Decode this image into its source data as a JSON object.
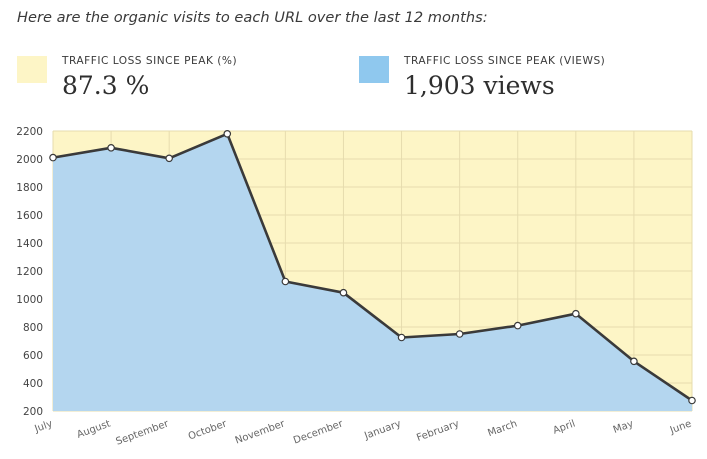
{
  "intro": "Here are the organic visits to each URL over the last 12 months:",
  "stats": [
    {
      "label": "TRAFFIC LOSS SINCE PEAK (%)",
      "value": "87.3 %",
      "color": "#fdf5c6"
    },
    {
      "label": "TRAFFIC LOSS SINCE PEAK (VIEWS)",
      "value": "1,903 views",
      "color": "#8fc8ee"
    }
  ],
  "chart_data": {
    "type": "area",
    "categories": [
      "July",
      "August",
      "September",
      "October",
      "November",
      "December",
      "January",
      "February",
      "March",
      "April",
      "May",
      "June"
    ],
    "series": [
      {
        "values": [
          2010,
          2080,
          2005,
          2180,
          1125,
          1045,
          725,
          750,
          810,
          895,
          555,
          275
        ]
      }
    ],
    "ylim": [
      200,
      2200
    ],
    "yticks": [
      200,
      400,
      600,
      800,
      1000,
      1200,
      1400,
      1600,
      1800,
      2000,
      2200
    ],
    "grid": true,
    "colors": {
      "area": "#b4d6ef",
      "background": "#fdf5c6",
      "line": "#3a3a3a",
      "grid": "#e6dcae"
    }
  }
}
